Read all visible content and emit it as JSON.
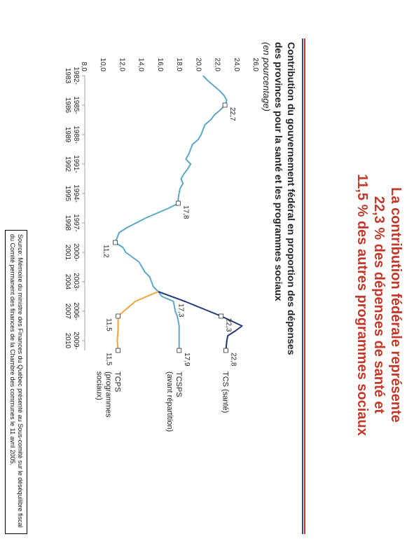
{
  "headline": {
    "line1": "La contribution fédérale représente",
    "line2": "22,3 % des dépenses de santé et",
    "line3": "11,5 % des autres programmes sociaux"
  },
  "colors": {
    "headline": "#c0392b",
    "rule_red": "#c0392b",
    "rule_blue": "#2c4a8c",
    "tcs": "#233876",
    "tcsps": "#5aa7c8",
    "tcps": "#f0a53a"
  },
  "source": {
    "line1": "Source: Mémoire du ministre des Finances du Québec présenté au Sous-comité sur le déséquilibre fiscal",
    "line2": "du Comité permanent des finances de la Chambre des communes le 11 avril 2005."
  },
  "chart_data": {
    "type": "line",
    "title": "Contribution du gouvernement fédéral en proportion des dépenses",
    "title_line2": "des provinces pour la santé et les programmes sociaux",
    "subtitle": "(en pourcentage)",
    "xlabel": "",
    "ylabel": "",
    "xlim": [
      1982,
      2010
    ],
    "ylim": [
      8.0,
      26.0
    ],
    "y_ticks": [
      "8,0",
      "10,0",
      "12,0",
      "14,0",
      "16,0",
      "18,0",
      "20,0",
      "22,0",
      "24,0",
      "26,0"
    ],
    "x_tick_labels": [
      {
        "x": 1982,
        "line1": "1982-",
        "line2": "1983"
      },
      {
        "x": 1985,
        "line1": "1985-",
        "line2": "1986"
      },
      {
        "x": 1988,
        "line1": "1988-",
        "line2": "1989"
      },
      {
        "x": 1991,
        "line1": "1991-",
        "line2": "1992"
      },
      {
        "x": 1994,
        "line1": "1994-",
        "line2": "1995"
      },
      {
        "x": 1997,
        "line1": "1997-",
        "line2": "1998"
      },
      {
        "x": 2000,
        "line1": "2000-",
        "line2": "2001"
      },
      {
        "x": 2003,
        "line1": "2003-",
        "line2": "2004"
      },
      {
        "x": 2006,
        "line1": "2006-",
        "line2": "2007"
      },
      {
        "x": 2009,
        "line1": "2009-",
        "line2": "2010"
      }
    ],
    "grid": false,
    "series": [
      {
        "name": "TCSPS",
        "legend": "TCSPS",
        "legend_line2": "(avant répartition)",
        "color": "#5aa7c8",
        "points": [
          [
            1982,
            20.4
          ],
          [
            1982.5,
            20.9
          ],
          [
            1983,
            21.5
          ],
          [
            1983.5,
            22.1
          ],
          [
            1984,
            22.6
          ],
          [
            1984.5,
            22.9
          ],
          [
            1985,
            22.7
          ],
          [
            1985.5,
            22.2
          ],
          [
            1986,
            21.6
          ],
          [
            1986.5,
            21.2
          ],
          [
            1987,
            20.6
          ],
          [
            1987.5,
            20.4
          ],
          [
            1988,
            20.2
          ],
          [
            1988.5,
            19.9
          ],
          [
            1989,
            19.3
          ],
          [
            1989.5,
            19.1
          ],
          [
            1990,
            18.9
          ],
          [
            1990.5,
            18.6
          ],
          [
            1991,
            19.1
          ],
          [
            1991.5,
            18.8
          ],
          [
            1992,
            18.4
          ],
          [
            1992.5,
            18.1
          ],
          [
            1993,
            18.3
          ],
          [
            1993.5,
            18.0
          ],
          [
            1994,
            17.9
          ],
          [
            1994.5,
            17.8
          ],
          [
            1995,
            17.8
          ],
          [
            1995.5,
            16.8
          ],
          [
            1996,
            15.6
          ],
          [
            1996.5,
            14.4
          ],
          [
            1997,
            13.4
          ],
          [
            1997.5,
            12.4
          ],
          [
            1998,
            11.6
          ],
          [
            1998.5,
            11.4
          ],
          [
            1999,
            11.2
          ],
          [
            1999.5,
            12.0
          ],
          [
            2000,
            12.3
          ],
          [
            2000.5,
            13.0
          ],
          [
            2001,
            13.7
          ],
          [
            2001.5,
            14.0
          ],
          [
            2002,
            14.3
          ],
          [
            2002.5,
            14.8
          ],
          [
            2003,
            15.0
          ],
          [
            2003.5,
            15.2
          ],
          [
            2004,
            15.7
          ],
          [
            2004.5,
            16.1
          ],
          [
            2005,
            17.3
          ],
          [
            2005.5,
            17.4
          ],
          [
            2006,
            17.5
          ],
          [
            2006.5,
            17.7
          ],
          [
            2007,
            17.8
          ],
          [
            2007.5,
            17.9
          ],
          [
            2008,
            17.9
          ],
          [
            2008.5,
            17.9
          ],
          [
            2009,
            17.9
          ],
          [
            2009.5,
            17.9
          ],
          [
            2010,
            17.9
          ]
        ],
        "labels": [
          {
            "x": 1985,
            "y": 22.7,
            "text": "22,7"
          },
          {
            "x": 1995,
            "y": 17.8,
            "text": "17,8"
          },
          {
            "x": 1999,
            "y": 11.2,
            "text": "11,2"
          },
          {
            "x": 2005,
            "y": 17.3,
            "text": "17,3"
          },
          {
            "x": 2010,
            "y": 17.9,
            "text": "17,9"
          }
        ],
        "markers": [
          [
            1985,
            22.7
          ],
          [
            1995,
            17.8
          ],
          [
            1999,
            11.2
          ],
          [
            2010,
            17.9
          ]
        ]
      },
      {
        "name": "TCS (santé)",
        "legend": "TCS (santé)",
        "legend_line2": "",
        "color": "#233876",
        "points": [
          [
            2004,
            15.7
          ],
          [
            2005,
            18.5
          ],
          [
            2006.5,
            22.3
          ],
          [
            2007.5,
            24.5
          ],
          [
            2008,
            23.8
          ],
          [
            2008.5,
            23.0
          ],
          [
            2009,
            22.9
          ],
          [
            2010,
            22.8
          ]
        ],
        "labels": [
          {
            "x": 2006.5,
            "y": 22.3,
            "text": "22,3"
          },
          {
            "x": 2010,
            "y": 22.8,
            "text": "22,8"
          }
        ],
        "markers": [
          [
            2006.5,
            22.3
          ],
          [
            2010,
            22.8
          ]
        ]
      },
      {
        "name": "TCPS",
        "legend": "TCPS",
        "legend_line2": "(programmes",
        "legend_line3": "sociaux)",
        "color": "#f0a53a",
        "points": [
          [
            2004,
            15.7
          ],
          [
            2005,
            13.3
          ],
          [
            2006.5,
            11.5
          ],
          [
            2007,
            11.5
          ],
          [
            2008,
            11.5
          ],
          [
            2009,
            11.4
          ],
          [
            2010,
            11.5
          ]
        ],
        "labels": [
          {
            "x": 2006.5,
            "y": 11.5,
            "text": "11,5"
          },
          {
            "x": 2010,
            "y": 11.5,
            "text": "11,5"
          }
        ],
        "markers": [
          [
            2006.5,
            11.5
          ],
          [
            2010,
            11.5
          ]
        ]
      }
    ]
  }
}
